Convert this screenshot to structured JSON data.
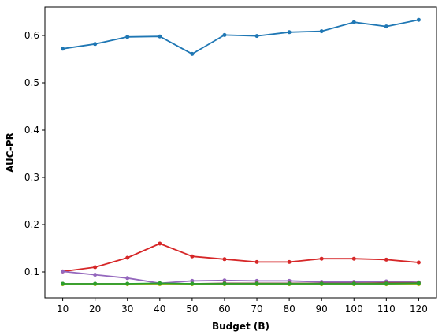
{
  "chart_data": {
    "type": "line",
    "title": "",
    "xlabel": "Budget (B)",
    "ylabel": "AUC-PR",
    "x": [
      10,
      20,
      30,
      40,
      50,
      60,
      70,
      80,
      90,
      100,
      110,
      120
    ],
    "xlim": [
      4.5,
      125.5
    ],
    "ylim": [
      0.045,
      0.66
    ],
    "yticks": [
      0.1,
      0.2,
      0.3,
      0.4,
      0.5,
      0.6
    ],
    "ytick_labels": [
      "0.1",
      "0.2",
      "0.3",
      "0.4",
      "0.5",
      "0.6"
    ],
    "xtick_labels": [
      "10",
      "20",
      "30",
      "40",
      "50",
      "60",
      "70",
      "80",
      "90",
      "100",
      "110",
      "120"
    ],
    "grid": false,
    "legend": false,
    "series": [
      {
        "color": "#1f77b4",
        "values": [
          0.572,
          0.582,
          0.597,
          0.598,
          0.561,
          0.601,
          0.599,
          0.607,
          0.609,
          0.628,
          0.619,
          0.633
        ]
      },
      {
        "color": "#d62728",
        "values": [
          0.101,
          0.11,
          0.13,
          0.16,
          0.133,
          0.127,
          0.121,
          0.121,
          0.128,
          0.128,
          0.126,
          0.12
        ]
      },
      {
        "color": "#9467bd",
        "values": [
          0.101,
          0.094,
          0.087,
          0.076,
          0.081,
          0.082,
          0.081,
          0.081,
          0.079,
          0.079,
          0.08,
          0.078
        ]
      },
      {
        "color": "#8c564b",
        "values": [
          0.075,
          0.075,
          0.075,
          0.075,
          0.075,
          0.076,
          0.076,
          0.076,
          0.076,
          0.076,
          0.077,
          0.077
        ]
      },
      {
        "color": "#bcbd22",
        "values": [
          0.074,
          0.074,
          0.074,
          0.074,
          0.074,
          0.074,
          0.074,
          0.074,
          0.074,
          0.074,
          0.074,
          0.074
        ]
      },
      {
        "color": "#2ca02c",
        "values": [
          0.075,
          0.075,
          0.075,
          0.076,
          0.075,
          0.075,
          0.075,
          0.075,
          0.075,
          0.075,
          0.075,
          0.076
        ]
      }
    ]
  }
}
